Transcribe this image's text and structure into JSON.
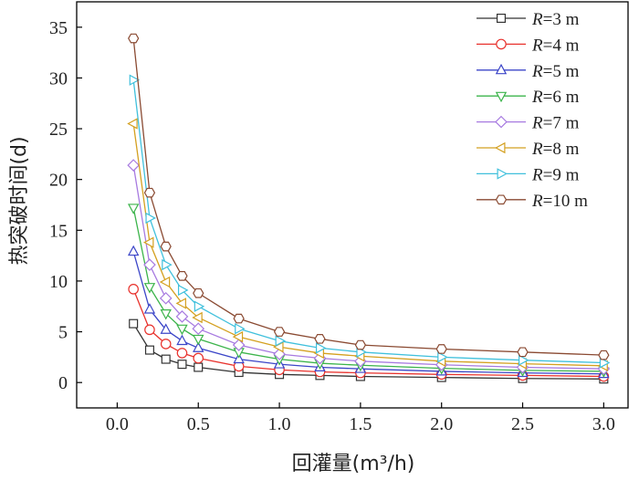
{
  "chart_data": {
    "type": "line",
    "xlabel": "回灌量(m³/h)",
    "ylabel": "热突破时间(d)",
    "xlim": [
      -0.25,
      3.15
    ],
    "ylim": [
      -2.5,
      37.5
    ],
    "xticks": [
      0.0,
      0.5,
      1.0,
      1.5,
      2.0,
      2.5,
      3.0
    ],
    "xtick_labels": [
      "0.0",
      "0.5",
      "1.0",
      "1.5",
      "2.0",
      "2.5",
      "3.0"
    ],
    "yticks": [
      0,
      5,
      10,
      15,
      20,
      25,
      30,
      35
    ],
    "ytick_labels": [
      "0",
      "5",
      "10",
      "15",
      "20",
      "25",
      "30",
      "35"
    ],
    "grid": false,
    "legend_position": "top-right",
    "x": [
      0.1,
      0.2,
      0.3,
      0.4,
      0.5,
      0.75,
      1.0,
      1.25,
      1.5,
      2.0,
      2.5,
      3.0
    ],
    "series": [
      {
        "name": "R=3 m",
        "var": "R",
        "rest": "=3 m",
        "color": "#333333",
        "marker": "square",
        "values": [
          5.8,
          3.2,
          2.3,
          1.8,
          1.5,
          1.0,
          0.8,
          0.7,
          0.6,
          0.5,
          0.4,
          0.35
        ]
      },
      {
        "name": "R=4 m",
        "var": "R",
        "rest": "=4 m",
        "color": "#e8322d",
        "marker": "circle",
        "values": [
          9.2,
          5.2,
          3.8,
          2.9,
          2.4,
          1.6,
          1.25,
          1.05,
          0.95,
          0.8,
          0.7,
          0.6
        ]
      },
      {
        "name": "R=5 m",
        "var": "R",
        "rest": "=5 m",
        "color": "#3c46c8",
        "marker": "triangle-up",
        "values": [
          12.9,
          7.2,
          5.2,
          4.1,
          3.4,
          2.3,
          1.8,
          1.5,
          1.35,
          1.1,
          0.95,
          0.85
        ]
      },
      {
        "name": "R=6 m",
        "var": "R",
        "rest": "=6 m",
        "color": "#3cb44b",
        "marker": "triangle-down",
        "values": [
          17.2,
          9.4,
          6.8,
          5.3,
          4.3,
          3.0,
          2.3,
          1.9,
          1.7,
          1.4,
          1.2,
          1.1
        ]
      },
      {
        "name": "R=7 m",
        "var": "R",
        "rest": "=7 m",
        "color": "#a77ae0",
        "marker": "diamond",
        "values": [
          21.4,
          11.6,
          8.3,
          6.5,
          5.3,
          3.7,
          2.8,
          2.4,
          2.1,
          1.75,
          1.5,
          1.35
        ]
      },
      {
        "name": "R=8 m",
        "var": "R",
        "rest": "=8 m",
        "color": "#d4a020",
        "marker": "triangle-left",
        "values": [
          25.5,
          13.8,
          9.9,
          7.8,
          6.4,
          4.5,
          3.5,
          2.9,
          2.6,
          2.1,
          1.85,
          1.65
        ]
      },
      {
        "name": "R=9 m",
        "var": "R",
        "rest": "=9 m",
        "color": "#40c0dc",
        "marker": "triangle-right",
        "values": [
          29.8,
          16.2,
          11.6,
          9.1,
          7.5,
          5.3,
          4.1,
          3.4,
          3.0,
          2.5,
          2.2,
          1.95
        ]
      },
      {
        "name": "R=10 m",
        "var": "R",
        "rest": "=10 m",
        "color": "#8a4a32",
        "marker": "hexagon",
        "values": [
          33.9,
          18.7,
          13.4,
          10.5,
          8.8,
          6.3,
          5.0,
          4.3,
          3.7,
          3.3,
          3.0,
          2.7
        ]
      }
    ]
  }
}
